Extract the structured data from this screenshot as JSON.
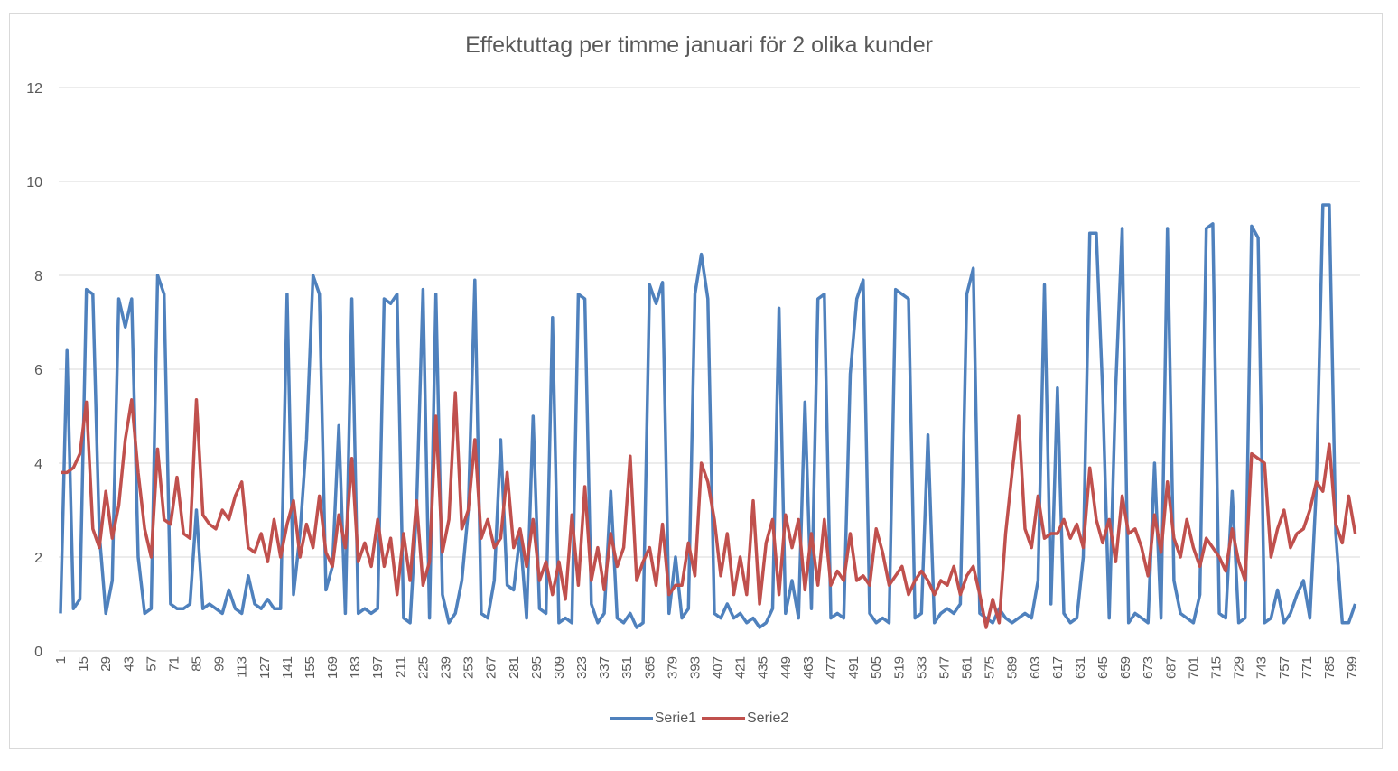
{
  "chart_data": {
    "type": "line",
    "title": "Effektuttag per timme januari för 2 olika kunder",
    "xlabel": "",
    "ylabel": "",
    "ylim": [
      0,
      12
    ],
    "yticks": [
      0,
      2,
      4,
      6,
      8,
      10,
      12
    ],
    "xlim": [
      1,
      804
    ],
    "xticks": [
      1,
      15,
      29,
      43,
      57,
      71,
      85,
      99,
      113,
      127,
      141,
      155,
      169,
      183,
      197,
      211,
      225,
      239,
      253,
      267,
      281,
      295,
      309,
      323,
      337,
      351,
      365,
      379,
      393,
      407,
      421,
      435,
      449,
      463,
      477,
      491,
      505,
      519,
      533,
      547,
      561,
      575,
      589,
      603,
      617,
      631,
      645,
      659,
      673,
      687,
      701,
      715,
      729,
      743,
      757,
      771,
      785,
      799
    ],
    "grid": "horizontal",
    "legend_position": "bottom",
    "sampling_note_x_start": 1,
    "x_step": 4,
    "series": [
      {
        "name": "Serie1",
        "color": "#4f81bd",
        "values": [
          0.8,
          6.4,
          0.9,
          1.1,
          7.7,
          7.6,
          2.5,
          0.8,
          1.5,
          7.5,
          6.9,
          7.5,
          2.0,
          0.8,
          0.9,
          8.0,
          7.6,
          1.0,
          0.9,
          0.9,
          1.0,
          3.0,
          0.9,
          1.0,
          0.9,
          0.8,
          1.3,
          0.9,
          0.8,
          1.6,
          1.0,
          0.9,
          1.1,
          0.9,
          0.9,
          7.6,
          1.2,
          2.5,
          4.5,
          8.0,
          7.6,
          1.3,
          1.8,
          4.8,
          0.8,
          7.5,
          0.8,
          0.9,
          0.8,
          0.9,
          7.5,
          7.4,
          7.6,
          0.7,
          0.6,
          3.0,
          7.7,
          0.7,
          7.6,
          1.2,
          0.6,
          0.8,
          1.5,
          3.0,
          7.9,
          0.8,
          0.7,
          1.5,
          4.5,
          1.4,
          1.3,
          2.5,
          0.7,
          5.0,
          0.9,
          0.8,
          7.1,
          0.6,
          0.7,
          0.6,
          7.6,
          7.5,
          1.0,
          0.6,
          0.8,
          3.4,
          0.7,
          0.6,
          0.8,
          0.5,
          0.6,
          7.8,
          7.4,
          7.85,
          0.8,
          2.0,
          0.7,
          0.9,
          7.6,
          8.45,
          7.5,
          0.8,
          0.7,
          1.0,
          0.7,
          0.8,
          0.6,
          0.7,
          0.5,
          0.6,
          0.9,
          7.3,
          0.8,
          1.5,
          0.7,
          5.3,
          0.9,
          7.5,
          7.6,
          0.7,
          0.8,
          0.7,
          5.9,
          7.5,
          7.9,
          0.8,
          0.6,
          0.7,
          0.6,
          7.7,
          7.6,
          7.5,
          0.7,
          0.8,
          4.6,
          0.6,
          0.8,
          0.9,
          0.8,
          1.0,
          7.6,
          8.15,
          0.8,
          0.7,
          0.6,
          0.9,
          0.7,
          0.6,
          0.7,
          0.8,
          0.7,
          1.5,
          7.8,
          1.0,
          5.6,
          0.8,
          0.6,
          0.7,
          2.0,
          8.9,
          8.9,
          5.5,
          0.7,
          5.6,
          9.0,
          0.6,
          0.8,
          0.7,
          0.6,
          4.0,
          0.7,
          9.0,
          1.5,
          0.8,
          0.7,
          0.6,
          1.2,
          9.0,
          9.1,
          0.8,
          0.7,
          3.4,
          0.6,
          0.7,
          9.05,
          8.8,
          0.6,
          0.7,
          1.3,
          0.6,
          0.8,
          1.2,
          1.5,
          0.7,
          3.5,
          9.5,
          9.5,
          2.5,
          0.6,
          0.6,
          1.0
        ]
      },
      {
        "name": "Serie2",
        "color": "#c0504d",
        "values": [
          3.8,
          3.8,
          3.9,
          4.2,
          5.3,
          2.6,
          2.2,
          3.4,
          2.4,
          3.1,
          4.5,
          5.35,
          3.8,
          2.6,
          2.0,
          4.3,
          2.8,
          2.7,
          3.7,
          2.5,
          2.4,
          5.35,
          2.9,
          2.7,
          2.6,
          3.0,
          2.8,
          3.3,
          3.6,
          2.2,
          2.1,
          2.5,
          1.9,
          2.8,
          2.0,
          2.7,
          3.2,
          2.0,
          2.7,
          2.2,
          3.3,
          2.1,
          1.8,
          2.9,
          2.2,
          4.1,
          1.9,
          2.3,
          1.8,
          2.8,
          1.8,
          2.4,
          1.2,
          2.5,
          1.5,
          3.2,
          1.4,
          1.9,
          5.0,
          2.1,
          2.8,
          5.5,
          2.6,
          3.0,
          4.5,
          2.4,
          2.8,
          2.2,
          2.4,
          3.8,
          2.2,
          2.6,
          1.8,
          2.8,
          1.5,
          1.9,
          1.2,
          1.9,
          1.1,
          2.9,
          1.4,
          3.5,
          1.5,
          2.2,
          1.3,
          2.5,
          1.8,
          2.2,
          4.15,
          1.5,
          1.9,
          2.2,
          1.4,
          2.7,
          1.2,
          1.4,
          1.4,
          2.3,
          1.6,
          4.0,
          3.6,
          2.8,
          1.6,
          2.5,
          1.2,
          2.0,
          1.2,
          3.2,
          1.0,
          2.3,
          2.8,
          1.2,
          2.9,
          2.2,
          2.8,
          1.3,
          2.5,
          1.4,
          2.8,
          1.4,
          1.7,
          1.5,
          2.5,
          1.5,
          1.6,
          1.4,
          2.6,
          2.1,
          1.4,
          1.6,
          1.8,
          1.2,
          1.5,
          1.7,
          1.5,
          1.2,
          1.5,
          1.4,
          1.8,
          1.2,
          1.6,
          1.8,
          1.2,
          0.5,
          1.1,
          0.6,
          2.5,
          3.8,
          5.0,
          2.6,
          2.2,
          3.3,
          2.4,
          2.5,
          2.5,
          2.8,
          2.4,
          2.7,
          2.2,
          3.9,
          2.8,
          2.3,
          2.8,
          1.9,
          3.3,
          2.5,
          2.6,
          2.2,
          1.6,
          2.9,
          2.1,
          3.6,
          2.4,
          2.0,
          2.8,
          2.2,
          1.8,
          2.4,
          2.2,
          2.0,
          1.7,
          2.6,
          1.9,
          1.5,
          4.2,
          4.1,
          4.0,
          2.0,
          2.6,
          3.0,
          2.2,
          2.5,
          2.6,
          3.0,
          3.6,
          3.4,
          4.4,
          2.7,
          2.3,
          3.3,
          2.5
        ]
      }
    ]
  }
}
